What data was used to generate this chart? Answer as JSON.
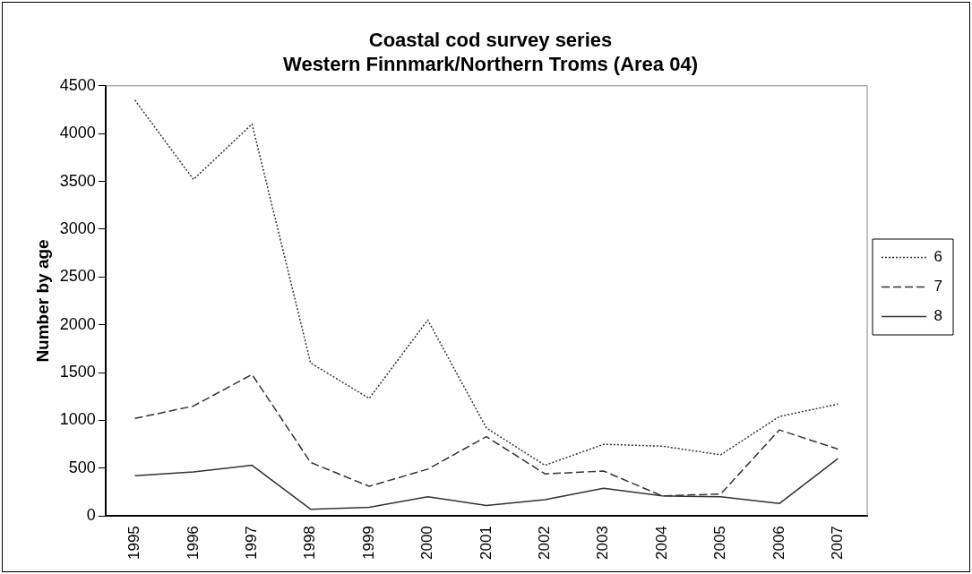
{
  "chart_data": {
    "type": "line",
    "title": "Coastal cod survey series\nWestern Finnmark/Northern Troms (Area 04)",
    "ylabel": "Number by age",
    "categories": [
      "1995",
      "1996",
      "1997",
      "1998",
      "1999",
      "2000",
      "2001",
      "2002",
      "2003",
      "2004",
      "2005",
      "2006",
      "2007"
    ],
    "series": [
      {
        "name": "6",
        "color": "#333333",
        "line_style": "dotted",
        "values": [
          4350,
          3520,
          4100,
          1600,
          1230,
          2050,
          920,
          530,
          750,
          730,
          640,
          1040,
          1170
        ]
      },
      {
        "name": "7",
        "color": "#333333",
        "line_style": "dashed",
        "values": [
          1020,
          1150,
          1480,
          560,
          310,
          490,
          830,
          440,
          470,
          210,
          230,
          900,
          700
        ]
      },
      {
        "name": "8",
        "color": "#333333",
        "line_style": "solid",
        "values": [
          420,
          460,
          530,
          70,
          90,
          200,
          110,
          170,
          290,
          210,
          200,
          130,
          600
        ]
      }
    ],
    "ylim": [
      0,
      4500
    ],
    "yticks": [
      0,
      500,
      1000,
      1500,
      2000,
      2500,
      3000,
      3500,
      4000,
      4500
    ],
    "grid": false,
    "legend": "right",
    "marker": "none"
  }
}
